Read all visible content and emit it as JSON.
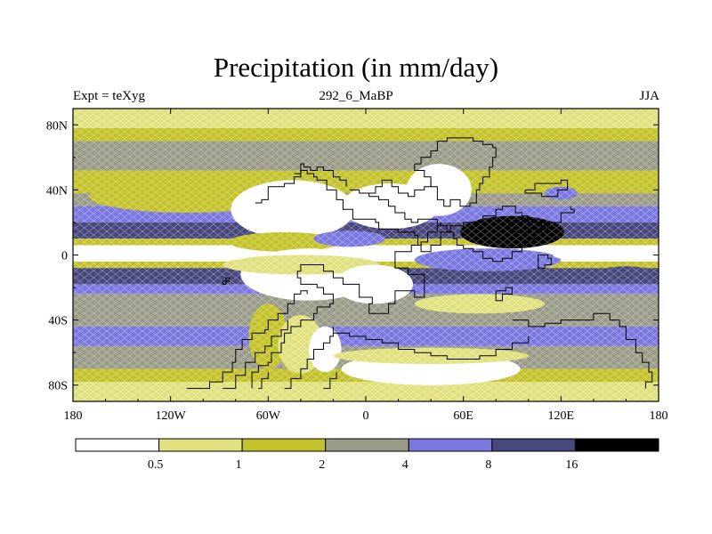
{
  "chart_data": {
    "type": "heatmap",
    "title": "Precipitation (in mm/day)",
    "subtitle_left": "Expt = teXyg",
    "subtitle_center": "292_6_MaBP",
    "subtitle_right": "JJA",
    "x_ticks": [
      "180",
      "120W",
      "60W",
      "0",
      "60E",
      "120E",
      "180"
    ],
    "y_ticks": [
      "80N",
      "40N",
      "0",
      "40S",
      "80S"
    ],
    "x_tick_values": [
      -180,
      -120,
      -60,
      0,
      60,
      120,
      180
    ],
    "y_tick_values": [
      80,
      40,
      0,
      -40,
      -80
    ],
    "xlim": [
      -180,
      180
    ],
    "ylim": [
      -90,
      90
    ],
    "colorbar": {
      "labels": [
        "0.5",
        "1",
        "2",
        "4",
        "8",
        "16"
      ],
      "levels": [
        0.5,
        1,
        2,
        4,
        8,
        16
      ],
      "colors": [
        "#ffffff",
        "#e0e07e",
        "#c3c22a",
        "#9a9a88",
        "#7b78e0",
        "#48477e",
        "#000000"
      ]
    },
    "bands": [
      {
        "lat": [
          90,
          78
        ],
        "level": 1
      },
      {
        "lat": [
          78,
          70
        ],
        "level": 2
      },
      {
        "lat": [
          70,
          52
        ],
        "level": 3
      },
      {
        "lat": [
          52,
          38
        ],
        "level": 2
      },
      {
        "lat": [
          38,
          30
        ],
        "level": 3
      },
      {
        "lat": [
          30,
          20
        ],
        "level": 4
      },
      {
        "lat": [
          20,
          10
        ],
        "level": 5
      },
      {
        "lat": [
          10,
          6
        ],
        "level": 2
      },
      {
        "lat": [
          6,
          -4
        ],
        "level": 0
      },
      {
        "lat": [
          -4,
          -8
        ],
        "level": 2
      },
      {
        "lat": [
          -8,
          -18
        ],
        "level": 5
      },
      {
        "lat": [
          -18,
          -24
        ],
        "level": 4
      },
      {
        "lat": [
          -24,
          -44
        ],
        "level": 3
      },
      {
        "lat": [
          -44,
          -56
        ],
        "level": 4
      },
      {
        "lat": [
          -56,
          -70
        ],
        "level": 3
      },
      {
        "lat": [
          -70,
          -78
        ],
        "level": 2
      },
      {
        "lat": [
          -78,
          -90
        ],
        "level": 1
      }
    ],
    "patches": [
      {
        "lon": -110,
        "lat": 36,
        "rx": 60,
        "ry": 10,
        "level": 2
      },
      {
        "lon": -45,
        "lat": 28,
        "rx": 38,
        "ry": 18,
        "level": 0
      },
      {
        "lon": 15,
        "lat": 30,
        "rx": 30,
        "ry": 14,
        "level": 0
      },
      {
        "lon": 45,
        "lat": 40,
        "rx": 20,
        "ry": 16,
        "level": 0
      },
      {
        "lon": -50,
        "lat": 8,
        "rx": 34,
        "ry": 6,
        "level": 2
      },
      {
        "lon": -10,
        "lat": 10,
        "rx": 22,
        "ry": 5,
        "level": 4
      },
      {
        "lon": -35,
        "lat": -12,
        "rx": 42,
        "ry": 16,
        "level": 0
      },
      {
        "lon": -40,
        "lat": -6,
        "rx": 48,
        "ry": 6,
        "level": 1
      },
      {
        "lon": 5,
        "lat": -18,
        "rx": 24,
        "ry": 12,
        "level": 0
      },
      {
        "lon": -60,
        "lat": -50,
        "rx": 12,
        "ry": 20,
        "level": 2
      },
      {
        "lon": -40,
        "lat": -55,
        "rx": 14,
        "ry": 18,
        "level": 1
      },
      {
        "lon": -25,
        "lat": -58,
        "rx": 10,
        "ry": 14,
        "level": 0
      },
      {
        "lon": 40,
        "lat": -70,
        "rx": 55,
        "ry": 10,
        "level": 0
      },
      {
        "lon": 40,
        "lat": -62,
        "rx": 60,
        "ry": 5,
        "level": 1
      },
      {
        "lon": 90,
        "lat": 14,
        "rx": 32,
        "ry": 10,
        "level": 6
      },
      {
        "lon": 95,
        "lat": 16,
        "rx": 10,
        "ry": 3,
        "level": 6
      },
      {
        "lon": 75,
        "lat": -3,
        "rx": 45,
        "ry": 7,
        "level": 4
      },
      {
        "lon": 140,
        "lat": 0,
        "rx": 25,
        "ry": 4,
        "level": 0
      },
      {
        "lon": 120,
        "lat": 38,
        "rx": 10,
        "ry": 4,
        "level": 4
      },
      {
        "lon": 70,
        "lat": -30,
        "rx": 40,
        "ry": 6,
        "level": 1
      },
      {
        "lon": -100,
        "lat": 0,
        "rx": 30,
        "ry": 4,
        "level": 0
      },
      {
        "lon": 160,
        "lat": -12,
        "rx": 20,
        "ry": 5,
        "level": 5
      }
    ],
    "coastlines": [
      [
        [
          -70,
          -82
        ],
        [
          -70,
          -72
        ],
        [
          -66,
          -68
        ],
        [
          -60,
          -66
        ],
        [
          -58,
          -60
        ],
        [
          -52,
          -54
        ],
        [
          -50,
          -48
        ],
        [
          -46,
          -44
        ],
        [
          -40,
          -40
        ],
        [
          -32,
          -36
        ],
        [
          -30,
          -32
        ],
        [
          -22,
          -30
        ],
        [
          -20,
          -24
        ],
        [
          -26,
          -20
        ],
        [
          -30,
          -18
        ],
        [
          -40,
          -14
        ],
        [
          -42,
          -10
        ],
        [
          -40,
          -6
        ],
        [
          -32,
          -6
        ],
        [
          -26,
          -10
        ],
        [
          -20,
          -14
        ],
        [
          -14,
          -18
        ],
        [
          -6,
          -18
        ],
        [
          -4,
          -26
        ],
        [
          2,
          -26
        ],
        [
          4,
          -30
        ],
        [
          2,
          -36
        ],
        [
          10,
          -36
        ],
        [
          14,
          -30
        ],
        [
          18,
          -22
        ],
        [
          26,
          -22
        ],
        [
          30,
          -26
        ],
        [
          34,
          -26
        ],
        [
          36,
          -20
        ],
        [
          36,
          -12
        ],
        [
          26,
          -8
        ],
        [
          18,
          -4
        ],
        [
          18,
          2
        ],
        [
          26,
          2
        ],
        [
          28,
          6
        ],
        [
          34,
          2
        ],
        [
          40,
          6
        ],
        [
          46,
          14
        ],
        [
          52,
          18
        ],
        [
          60,
          20
        ],
        [
          72,
          24
        ],
        [
          80,
          28
        ],
        [
          84,
          30
        ],
        [
          90,
          30
        ],
        [
          92,
          26
        ],
        [
          96,
          26
        ],
        [
          96,
          24
        ],
        [
          100,
          20
        ],
        [
          110,
          16
        ],
        [
          112,
          20
        ],
        [
          120,
          26
        ],
        [
          128,
          28
        ],
        [
          126,
          30
        ]
      ],
      [
        [
          -110,
          -82
        ],
        [
          -104,
          -82
        ],
        [
          -96,
          -78
        ],
        [
          -88,
          -72
        ],
        [
          -82,
          -66
        ],
        [
          -80,
          -58
        ],
        [
          -76,
          -52
        ],
        [
          -70,
          -48
        ],
        [
          -62,
          -46
        ],
        [
          -60,
          -40
        ],
        [
          -54,
          -36
        ],
        [
          -48,
          -30
        ],
        [
          -44,
          -24
        ],
        [
          -40,
          -22
        ],
        [
          -36,
          -24
        ]
      ],
      [
        [
          -88,
          -82
        ],
        [
          -80,
          -74
        ],
        [
          -74,
          -66
        ],
        [
          -68,
          -60
        ],
        [
          -62,
          -56
        ],
        [
          -58,
          -50
        ],
        [
          -52,
          -46
        ],
        [
          -48,
          -40
        ]
      ],
      [
        [
          -50,
          -82
        ],
        [
          -46,
          -76
        ],
        [
          -40,
          -70
        ],
        [
          -36,
          -64
        ],
        [
          -32,
          -58
        ],
        [
          -26,
          -54
        ],
        [
          -22,
          -50
        ],
        [
          -20,
          -44
        ]
      ],
      [
        [
          -66,
          -82
        ],
        [
          -64,
          -76
        ],
        [
          -60,
          -72
        ]
      ],
      [
        [
          -26,
          -82
        ],
        [
          -22,
          -76
        ],
        [
          -18,
          -72
        ]
      ],
      [
        [
          -88,
          -16
        ],
        [
          -86,
          -14
        ],
        [
          -84,
          -16
        ],
        [
          -86,
          -18
        ],
        [
          -88,
          -16
        ]
      ],
      [
        [
          -68,
          32
        ],
        [
          -64,
          34
        ],
        [
          -60,
          42
        ],
        [
          -50,
          44
        ],
        [
          -44,
          48
        ],
        [
          -40,
          52
        ],
        [
          -36,
          50
        ],
        [
          -32,
          48
        ],
        [
          -30,
          46
        ],
        [
          -24,
          40
        ],
        [
          -18,
          34
        ],
        [
          -14,
          28
        ],
        [
          -8,
          22
        ],
        [
          0,
          22
        ],
        [
          6,
          20
        ],
        [
          8,
          16
        ],
        [
          16,
          16
        ],
        [
          20,
          14
        ],
        [
          28,
          14
        ],
        [
          30,
          12
        ],
        [
          32,
          6
        ],
        [
          34,
          8
        ],
        [
          38,
          14
        ],
        [
          44,
          18
        ],
        [
          46,
          20
        ]
      ],
      [
        [
          -44,
          50
        ],
        [
          -40,
          56
        ],
        [
          -38,
          54
        ],
        [
          -34,
          52
        ],
        [
          -30,
          54
        ],
        [
          -26,
          52
        ],
        [
          -20,
          48
        ],
        [
          -16,
          46
        ],
        [
          -12,
          42
        ]
      ],
      [
        [
          -10,
          40
        ],
        [
          -4,
          38
        ],
        [
          2,
          36
        ],
        [
          8,
          34
        ],
        [
          14,
          30
        ],
        [
          18,
          26
        ],
        [
          24,
          22
        ],
        [
          28,
          20
        ],
        [
          32,
          22
        ],
        [
          38,
          22
        ],
        [
          44,
          18
        ],
        [
          50,
          14
        ],
        [
          54,
          10
        ],
        [
          56,
          6
        ],
        [
          60,
          4
        ],
        [
          66,
          2
        ],
        [
          72,
          -2
        ],
        [
          78,
          -4
        ],
        [
          84,
          -2
        ],
        [
          90,
          2
        ],
        [
          96,
          6
        ],
        [
          100,
          10
        ],
        [
          104,
          14
        ],
        [
          108,
          18
        ],
        [
          112,
          20
        ]
      ],
      [
        [
          30,
          56
        ],
        [
          34,
          60
        ],
        [
          40,
          64
        ],
        [
          44,
          70
        ],
        [
          50,
          72
        ],
        [
          58,
          72
        ],
        [
          66,
          70
        ],
        [
          72,
          68
        ],
        [
          78,
          66
        ],
        [
          80,
          60
        ],
        [
          78,
          54
        ],
        [
          76,
          48
        ],
        [
          72,
          44
        ],
        [
          70,
          40
        ],
        [
          68,
          32
        ],
        [
          64,
          30
        ],
        [
          58,
          34
        ],
        [
          52,
          30
        ],
        [
          48,
          34
        ],
        [
          44,
          42
        ],
        [
          40,
          48
        ],
        [
          36,
          52
        ],
        [
          30,
          56
        ]
      ],
      [
        [
          0,
          38
        ],
        [
          6,
          42
        ],
        [
          10,
          46
        ],
        [
          16,
          42
        ],
        [
          20,
          38
        ],
        [
          26,
          36
        ],
        [
          30,
          40
        ],
        [
          36,
          42
        ],
        [
          40,
          46
        ]
      ],
      [
        [
          98,
          40
        ],
        [
          104,
          44
        ],
        [
          112,
          44
        ],
        [
          120,
          46
        ],
        [
          124,
          40
        ],
        [
          118,
          36
        ],
        [
          108,
          38
        ],
        [
          98,
          40
        ]
      ],
      [
        [
          88,
          20
        ],
        [
          96,
          22
        ],
        [
          104,
          20
        ],
        [
          108,
          16
        ],
        [
          100,
          14
        ],
        [
          92,
          16
        ],
        [
          88,
          20
        ]
      ],
      [
        [
          106,
          0
        ],
        [
          112,
          -2
        ],
        [
          114,
          -6
        ],
        [
          110,
          -8
        ],
        [
          106,
          -4
        ],
        [
          106,
          0
        ]
      ],
      [
        [
          80,
          -22
        ],
        [
          86,
          -20
        ],
        [
          90,
          -24
        ],
        [
          84,
          -28
        ],
        [
          80,
          -22
        ]
      ],
      [
        [
          90,
          -40
        ],
        [
          100,
          -44
        ],
        [
          110,
          -42
        ],
        [
          120,
          -40
        ],
        [
          130,
          -40
        ],
        [
          140,
          -36
        ],
        [
          150,
          -40
        ],
        [
          156,
          -44
        ],
        [
          160,
          -52
        ],
        [
          166,
          -60
        ],
        [
          170,
          -66
        ],
        [
          174,
          -72
        ],
        [
          176,
          -78
        ],
        [
          172,
          -82
        ]
      ],
      [
        [
          -20,
          -48
        ],
        [
          -10,
          -50
        ],
        [
          0,
          -52
        ],
        [
          10,
          -54
        ],
        [
          20,
          -58
        ],
        [
          30,
          -60
        ],
        [
          40,
          -62
        ],
        [
          50,
          -64
        ],
        [
          60,
          -64
        ],
        [
          70,
          -62
        ],
        [
          80,
          -58
        ],
        [
          90,
          -54
        ],
        [
          100,
          -50
        ]
      ]
    ]
  }
}
